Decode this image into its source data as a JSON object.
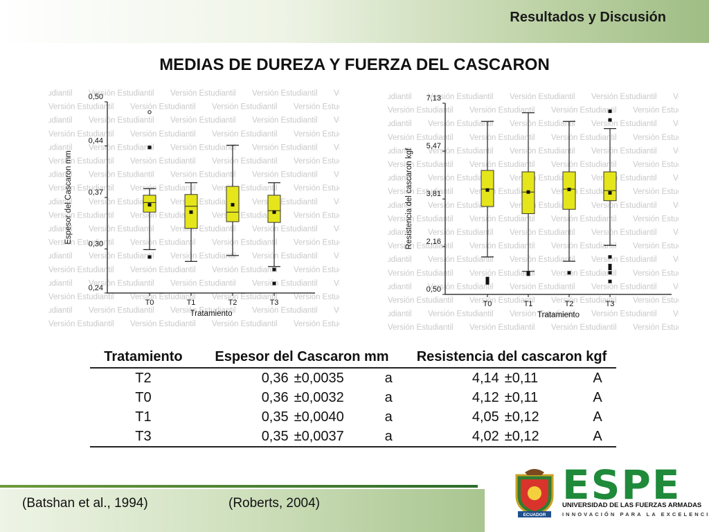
{
  "header": {
    "section_title": "Resultados y Discusión"
  },
  "main_title": "MEDIAS DE DUREZA Y FUERZA DEL CASCARON",
  "watermark_text": "Versión Estudiantil",
  "colors": {
    "box_fill": "#e5e51c",
    "box_stroke": "#333333",
    "accent_green": "#1f8a3a"
  },
  "chart_data": [
    {
      "type": "box",
      "ylabel": "Espesor del Cascaron mm",
      "xlabel": "Tratamiento",
      "ylim": [
        0.24,
        0.5
      ],
      "yticks": [
        0.24,
        0.3,
        0.37,
        0.44,
        0.5
      ],
      "ytick_labels": [
        "0,24",
        "0,30",
        "0,37",
        "0,44",
        "0,50"
      ],
      "categories": [
        "T0",
        "T1",
        "T2",
        "T3"
      ],
      "boxes": [
        {
          "min": 0.299,
          "q1": 0.35,
          "median": 0.363,
          "q3": 0.373,
          "max": 0.382,
          "mean": 0.36,
          "outliers": [
            0.289,
            0.438,
            0.486
          ]
        },
        {
          "min": 0.283,
          "q1": 0.328,
          "median": 0.358,
          "q3": 0.374,
          "max": 0.39,
          "mean": 0.35,
          "outliers": []
        },
        {
          "min": 0.291,
          "q1": 0.337,
          "median": 0.35,
          "q3": 0.385,
          "max": 0.441,
          "mean": 0.36,
          "outliers": []
        },
        {
          "min": 0.276,
          "q1": 0.336,
          "median": 0.352,
          "q3": 0.373,
          "max": 0.39,
          "mean": 0.35,
          "outliers": [
            0.272,
            0.253
          ]
        }
      ]
    },
    {
      "type": "box",
      "ylabel": "Resistencia del cascaron kgf",
      "xlabel": "Tratamiento",
      "ylim": [
        0.5,
        7.13
      ],
      "yticks": [
        0.5,
        2.16,
        3.81,
        5.47,
        7.13
      ],
      "ytick_labels": [
        "0,50",
        "2,16",
        "3,81",
        "5,47",
        "7,13"
      ],
      "categories": [
        "T0",
        "T1",
        "T2",
        "T3"
      ],
      "boxes": [
        {
          "min": 1.8,
          "q1": 3.55,
          "median": 4.15,
          "q3": 4.8,
          "max": 6.5,
          "mean": 4.12,
          "outliers": [
            0.9,
            0.95,
            1.0,
            1.05
          ]
        },
        {
          "min": 1.3,
          "q1": 3.3,
          "median": 4.05,
          "q3": 4.75,
          "max": 6.8,
          "mean": 4.05,
          "outliers": [
            1.2,
            1.25
          ]
        },
        {
          "min": 1.65,
          "q1": 3.45,
          "median": 4.15,
          "q3": 4.75,
          "max": 6.5,
          "mean": 4.14,
          "outliers": [
            1.25
          ]
        },
        {
          "min": 2.2,
          "q1": 3.75,
          "median": 4.1,
          "q3": 4.75,
          "max": 6.25,
          "mean": 4.02,
          "outliers": [
            0.95,
            1.25,
            1.4,
            1.5,
            1.8,
            6.55,
            6.85
          ]
        }
      ]
    }
  ],
  "table": {
    "headers": [
      "Tratamiento",
      "Espesor del Cascaron mm",
      "Resistencia del cascaron kgf"
    ],
    "rows": [
      {
        "trat": "T2",
        "esp": "0,36",
        "esp_sd": "±0,0035",
        "esp_letter": "a",
        "res": "4,14",
        "res_sd": "±0,11",
        "res_letter": "A"
      },
      {
        "trat": "T0",
        "esp": "0,36",
        "esp_sd": "±0,0032",
        "esp_letter": "a",
        "res": "4,12",
        "res_sd": "±0,11",
        "res_letter": "A"
      },
      {
        "trat": "T1",
        "esp": "0,35",
        "esp_sd": "±0,0040",
        "esp_letter": "a",
        "res": "4,05",
        "res_sd": "±0,12",
        "res_letter": "A"
      },
      {
        "trat": "T3",
        "esp": "0,35",
        "esp_sd": "±0,0037",
        "esp_letter": "a",
        "res": "4,02",
        "res_sd": "±0,12",
        "res_letter": "A"
      }
    ]
  },
  "references": [
    "(Batshan et al., 1994)",
    "(Roberts, 2004)"
  ],
  "logo": {
    "name": "ESPE",
    "university": "UNIVERSIDAD DE LAS FUERZAS ARMADAS",
    "slogan": "INNOVACIÓN PARA LA EXCELENCIA",
    "crest_label": "ECUADOR"
  }
}
